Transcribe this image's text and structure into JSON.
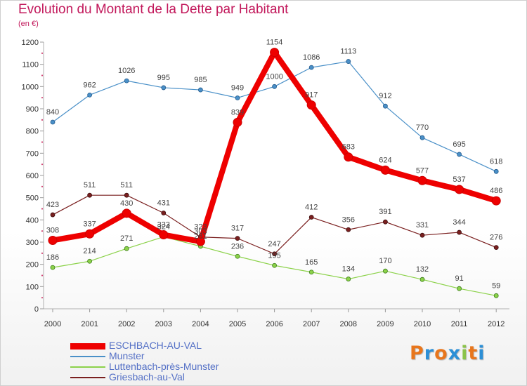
{
  "header": {
    "title": "Evolution du Montant de la Dette par Habitant",
    "subtitle": "(en €)"
  },
  "chart_data": {
    "type": "line",
    "title": "Evolution du Montant de la Dette par Habitant",
    "subtitle": "(en €)",
    "x": [
      "2000",
      "2001",
      "2002",
      "2003",
      "2004",
      "2005",
      "2006",
      "2007",
      "2008",
      "2009",
      "2010",
      "2011",
      "2012"
    ],
    "ylim": [
      0,
      1200
    ],
    "yticks": [
      0,
      100,
      200,
      300,
      400,
      500,
      600,
      700,
      800,
      900,
      1000,
      1100,
      1200
    ],
    "grid": false,
    "legend_position": "bottom-left",
    "series": [
      {
        "name": "ESCHBACH-AU-VAL",
        "color": "#ee0000",
        "values": [
          308,
          337,
          430,
          333,
          303,
          839,
          1154,
          917,
          683,
          624,
          577,
          537,
          486
        ]
      },
      {
        "name": "Munster",
        "color": "#4a90c8",
        "values": [
          840,
          962,
          1026,
          995,
          985,
          949,
          1000,
          1086,
          1113,
          912,
          770,
          695,
          618
        ]
      },
      {
        "name": "Luttenbach-près-Munster",
        "color": "#8cd24a",
        "values": [
          186,
          214,
          271,
          324,
          281,
          236,
          195,
          165,
          134,
          170,
          132,
          91,
          59
        ]
      },
      {
        "name": "Griesbach-au-Val",
        "color": "#7a1f1f",
        "values": [
          423,
          511,
          511,
          431,
          323,
          317,
          247,
          412,
          356,
          391,
          331,
          344,
          276
        ]
      }
    ]
  },
  "logo": {
    "text": "Proxiti",
    "colors": [
      "#e8761c",
      "#2c8fd6",
      "#e8761c",
      "#2c8fd6",
      "#8bc34a",
      "#e8761c",
      "#2c8fd6"
    ]
  }
}
